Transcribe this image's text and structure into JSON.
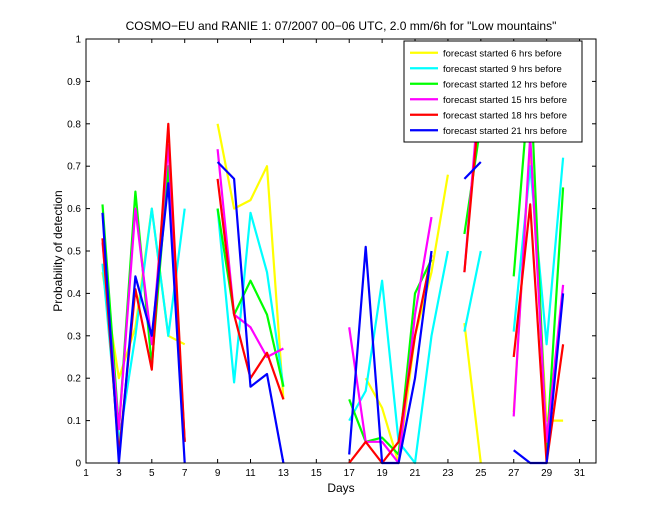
{
  "chart_data": {
    "type": "line",
    "title": "COSMO−EU and RANIE 1: 07/2007 00−06 UTC, 2.0 mm/6h for \"Low mountains\"",
    "xlabel": "Days",
    "ylabel": "Probability of detection",
    "xlim": [
      1,
      32
    ],
    "ylim": [
      0,
      1
    ],
    "xticks": [
      "1",
      "3",
      "5",
      "7",
      "9",
      "11",
      "13",
      "15",
      "17",
      "19",
      "21",
      "23",
      "25",
      "27",
      "29",
      "31"
    ],
    "yticks": [
      "0",
      "0.1",
      "0.2",
      "0.3",
      "0.4",
      "0.5",
      "0.6",
      "0.7",
      "0.8",
      "0.9",
      "1"
    ],
    "grid": false,
    "legend_position": "top-right",
    "series": [
      {
        "name": "forecast started 6 hrs before",
        "color": "#ffff00",
        "x": [
          2,
          3,
          4,
          5,
          6,
          7,
          null,
          9,
          10,
          11,
          12,
          13,
          null,
          18,
          19,
          20,
          21,
          22,
          23,
          null,
          24,
          25,
          null,
          27,
          28,
          29,
          30
        ],
        "y": [
          0.45,
          0.2,
          0.32,
          0.6,
          0.3,
          0.28,
          null,
          0.8,
          0.6,
          0.62,
          0.7,
          0.15,
          null,
          0.2,
          0.13,
          0.0,
          0.3,
          0.45,
          0.68,
          null,
          0.33,
          0.0,
          null,
          0.12,
          0.75,
          0.1,
          0.1
        ]
      },
      {
        "name": "forecast started 9 hrs before",
        "color": "#00ffff",
        "x": [
          2,
          3,
          4,
          5,
          6,
          7,
          null,
          9,
          10,
          11,
          12,
          13,
          null,
          17,
          18,
          19,
          20,
          21,
          22,
          23,
          null,
          24,
          25,
          null,
          27,
          28,
          29,
          30
        ],
        "y": [
          0.47,
          0.05,
          0.3,
          0.6,
          0.3,
          0.6,
          null,
          0.6,
          0.19,
          0.59,
          0.45,
          0.18,
          null,
          0.1,
          0.17,
          0.43,
          0.05,
          0.0,
          0.3,
          0.5,
          null,
          0.31,
          0.5,
          null,
          0.31,
          0.7,
          0.28,
          0.72
        ]
      },
      {
        "name": "forecast started 12 hrs before",
        "color": "#00ff00",
        "x": [
          2,
          3,
          4,
          5,
          6,
          7,
          null,
          9,
          10,
          11,
          12,
          13,
          null,
          17,
          18,
          19,
          20,
          21,
          22,
          null,
          24,
          25,
          null,
          27,
          28,
          29,
          30
        ],
        "y": [
          0.61,
          0.08,
          0.64,
          0.23,
          0.7,
          0.05,
          null,
          0.6,
          0.35,
          0.43,
          0.35,
          0.18,
          null,
          0.15,
          0.05,
          0.06,
          0.02,
          0.4,
          0.48,
          null,
          0.54,
          0.8,
          null,
          0.44,
          0.92,
          0.03,
          0.65
        ]
      },
      {
        "name": "forecast started 15 hrs before",
        "color": "#ff00ff",
        "x": [
          2,
          3,
          4,
          5,
          6,
          7,
          null,
          9,
          10,
          11,
          12,
          13,
          null,
          17,
          18,
          19,
          20,
          21,
          22,
          null,
          24,
          25,
          null,
          27,
          28,
          29,
          30
        ],
        "y": [
          0.52,
          0.08,
          0.6,
          0.28,
          0.75,
          0.05,
          null,
          0.74,
          0.35,
          0.32,
          0.25,
          0.27,
          null,
          0.32,
          0.05,
          0.05,
          0.0,
          0.35,
          0.58,
          null,
          0.45,
          0.92,
          null,
          0.11,
          0.77,
          0.05,
          0.42
        ]
      },
      {
        "name": "forecast started 18 hrs before",
        "color": "#ff0000",
        "x": [
          2,
          3,
          4,
          5,
          6,
          7,
          null,
          9,
          10,
          11,
          12,
          13,
          null,
          17,
          18,
          19,
          20,
          21,
          22,
          null,
          24,
          25,
          null,
          27,
          28,
          29,
          30
        ],
        "y": [
          0.53,
          0.02,
          0.41,
          0.22,
          0.8,
          0.05,
          null,
          0.67,
          0.35,
          0.2,
          0.26,
          0.15,
          null,
          0.0,
          0.05,
          0.0,
          0.05,
          0.3,
          0.49,
          null,
          0.45,
          0.88,
          null,
          0.25,
          0.61,
          0.0,
          0.28
        ]
      },
      {
        "name": "forecast started 21 hrs before",
        "color": "#0000ff",
        "x": [
          2,
          3,
          4,
          5,
          6,
          7,
          null,
          9,
          10,
          11,
          12,
          13,
          null,
          17,
          18,
          19,
          20,
          21,
          22,
          null,
          24,
          25,
          null,
          27,
          28,
          29,
          30
        ],
        "y": [
          0.59,
          0.0,
          0.44,
          0.3,
          0.66,
          0.0,
          null,
          0.71,
          0.67,
          0.18,
          0.21,
          0.0,
          null,
          0.02,
          0.51,
          0.0,
          0.0,
          0.2,
          0.5,
          null,
          0.67,
          0.71,
          null,
          0.03,
          0.0,
          0.0,
          0.4
        ]
      }
    ]
  }
}
